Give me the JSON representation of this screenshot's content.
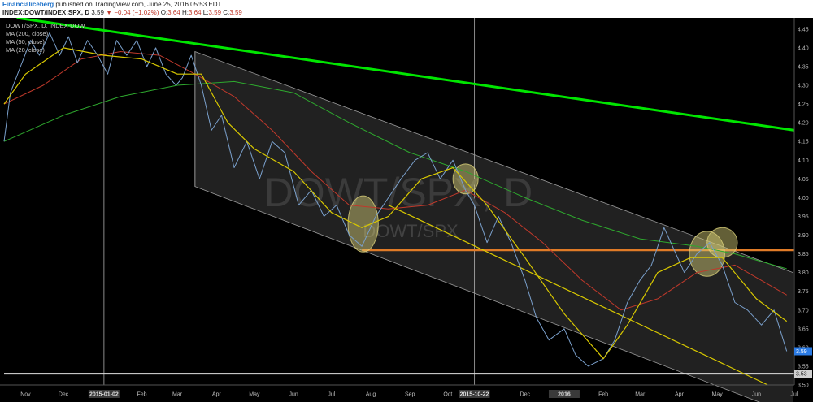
{
  "header": {
    "publisher": "Financialiceberg",
    "published_text": "published on TradingView.com, June 25, 2016 05:53 EDT",
    "symbol_line": "INDEX:DOWT/INDEX:SPX, D",
    "last": "3.59",
    "change": "▼ −0.04 (−1.02%)",
    "o_label": "O:",
    "o": "3.64",
    "h_label": "H:",
    "h": "3.64",
    "l_label": "L:",
    "l": "3.59",
    "c_label": "C:",
    "c": "3.59"
  },
  "legend": {
    "title": "DOWT/SPX, D, INDEX-DOW",
    "items": [
      "MA (200, close)",
      "MA (50, close)",
      "MA (20, close)"
    ]
  },
  "watermark": {
    "big": "DOWT/SPX, D",
    "small": "DOWT/SPX"
  },
  "price_labels": {
    "last": "3.59",
    "support": "3.53"
  },
  "colors": {
    "price": "#7aa0cc",
    "ma20": "#d8c800",
    "ma50": "#c0392b",
    "ma200": "#2ea82e",
    "trend": "#00e600",
    "horizontal": "#e07b27",
    "highlight": "#dcd27a"
  },
  "chart_data": {
    "type": "line",
    "title": "DOWT/SPX, D, INDEX-DOW",
    "ylim": [
      3.5,
      4.48
    ],
    "yticks": [
      3.5,
      3.55,
      3.6,
      3.65,
      3.7,
      3.75,
      3.8,
      3.85,
      3.9,
      3.95,
      4.0,
      4.05,
      4.1,
      4.15,
      4.2,
      4.25,
      4.3,
      4.35,
      4.4,
      4.45
    ],
    "xlim": [
      "2014-10-15",
      "2016-07-01"
    ],
    "xticks": [
      {
        "label": "Nov",
        "date": "2014-11-01"
      },
      {
        "label": "Dec",
        "date": "2014-12-01"
      },
      {
        "label": "2015-01-02",
        "date": "2015-01-02",
        "bold": true
      },
      {
        "label": "Feb",
        "date": "2015-02-01"
      },
      {
        "label": "Mar",
        "date": "2015-03-01"
      },
      {
        "label": "Apr",
        "date": "2015-04-01"
      },
      {
        "label": "May",
        "date": "2015-05-01"
      },
      {
        "label": "Jun",
        "date": "2015-06-01"
      },
      {
        "label": "Jul",
        "date": "2015-07-01"
      },
      {
        "label": "Aug",
        "date": "2015-08-01"
      },
      {
        "label": "Sep",
        "date": "2015-09-01"
      },
      {
        "label": "Oct",
        "date": "2015-10-01"
      },
      {
        "label": "2015-10-22",
        "date": "2015-10-22",
        "bold": true
      },
      {
        "label": "Dec",
        "date": "2015-12-01"
      },
      {
        "label": "2016",
        "date": "2016-01-01",
        "bold": true
      },
      {
        "label": "Feb",
        "date": "2016-02-01"
      },
      {
        "label": "Mar",
        "date": "2016-03-01"
      },
      {
        "label": "Apr",
        "date": "2016-04-01"
      },
      {
        "label": "May",
        "date": "2016-05-01"
      },
      {
        "label": "Jun",
        "date": "2016-06-01"
      },
      {
        "label": "Jul",
        "date": "2016-07-01"
      }
    ],
    "vlines": [
      "2015-01-02",
      "2015-10-22"
    ],
    "series": [
      {
        "key": "price",
        "points": [
          [
            "2014-10-15",
            4.15
          ],
          [
            "2014-10-20",
            4.28
          ],
          [
            "2014-10-28",
            4.35
          ],
          [
            "2014-11-05",
            4.42
          ],
          [
            "2014-11-12",
            4.38
          ],
          [
            "2014-11-20",
            4.44
          ],
          [
            "2014-11-28",
            4.38
          ],
          [
            "2014-12-05",
            4.43
          ],
          [
            "2014-12-12",
            4.36
          ],
          [
            "2014-12-20",
            4.42
          ],
          [
            "2014-12-28",
            4.38
          ],
          [
            "2015-01-05",
            4.33
          ],
          [
            "2015-01-12",
            4.42
          ],
          [
            "2015-01-20",
            4.38
          ],
          [
            "2015-01-28",
            4.42
          ],
          [
            "2015-02-05",
            4.35
          ],
          [
            "2015-02-12",
            4.4
          ],
          [
            "2015-02-20",
            4.33
          ],
          [
            "2015-02-28",
            4.3
          ],
          [
            "2015-03-05",
            4.32
          ],
          [
            "2015-03-12",
            4.38
          ],
          [
            "2015-03-20",
            4.3
          ],
          [
            "2015-03-28",
            4.18
          ],
          [
            "2015-04-05",
            4.22
          ],
          [
            "2015-04-15",
            4.08
          ],
          [
            "2015-04-25",
            4.15
          ],
          [
            "2015-05-05",
            4.05
          ],
          [
            "2015-05-15",
            4.15
          ],
          [
            "2015-05-25",
            4.12
          ],
          [
            "2015-06-05",
            3.98
          ],
          [
            "2015-06-15",
            4.02
          ],
          [
            "2015-06-25",
            3.95
          ],
          [
            "2015-07-05",
            3.98
          ],
          [
            "2015-07-15",
            3.9
          ],
          [
            "2015-07-25",
            3.87
          ],
          [
            "2015-08-05",
            3.95
          ],
          [
            "2015-08-15",
            4.0
          ],
          [
            "2015-08-25",
            4.05
          ],
          [
            "2015-09-05",
            4.1
          ],
          [
            "2015-09-15",
            4.12
          ],
          [
            "2015-09-25",
            4.05
          ],
          [
            "2015-10-05",
            4.1
          ],
          [
            "2015-10-15",
            4.02
          ],
          [
            "2015-10-22",
            3.98
          ],
          [
            "2015-11-01",
            3.88
          ],
          [
            "2015-11-10",
            3.95
          ],
          [
            "2015-11-20",
            3.88
          ],
          [
            "2015-12-01",
            3.78
          ],
          [
            "2015-12-10",
            3.68
          ],
          [
            "2015-12-20",
            3.62
          ],
          [
            "2016-01-01",
            3.65
          ],
          [
            "2016-01-10",
            3.58
          ],
          [
            "2016-01-20",
            3.55
          ],
          [
            "2016-02-01",
            3.57
          ],
          [
            "2016-02-10",
            3.62
          ],
          [
            "2016-02-20",
            3.72
          ],
          [
            "2016-03-01",
            3.78
          ],
          [
            "2016-03-10",
            3.82
          ],
          [
            "2016-03-20",
            3.92
          ],
          [
            "2016-03-28",
            3.86
          ],
          [
            "2016-04-05",
            3.8
          ],
          [
            "2016-04-15",
            3.85
          ],
          [
            "2016-04-25",
            3.88
          ],
          [
            "2016-05-05",
            3.82
          ],
          [
            "2016-05-15",
            3.72
          ],
          [
            "2016-05-25",
            3.7
          ],
          [
            "2016-06-05",
            3.66
          ],
          [
            "2016-06-15",
            3.7
          ],
          [
            "2016-06-25",
            3.59
          ]
        ]
      },
      {
        "key": "ma20",
        "points": [
          [
            "2014-10-15",
            4.25
          ],
          [
            "2014-11-01",
            4.33
          ],
          [
            "2014-12-01",
            4.4
          ],
          [
            "2015-01-02",
            4.38
          ],
          [
            "2015-02-01",
            4.37
          ],
          [
            "2015-03-01",
            4.33
          ],
          [
            "2015-03-20",
            4.33
          ],
          [
            "2015-04-10",
            4.2
          ],
          [
            "2015-05-01",
            4.13
          ],
          [
            "2015-06-01",
            4.07
          ],
          [
            "2015-07-01",
            3.96
          ],
          [
            "2015-07-25",
            3.92
          ],
          [
            "2015-08-15",
            3.95
          ],
          [
            "2015-09-10",
            4.05
          ],
          [
            "2015-10-05",
            4.08
          ],
          [
            "2015-11-01",
            3.98
          ],
          [
            "2015-12-01",
            3.84
          ],
          [
            "2016-01-01",
            3.69
          ],
          [
            "2016-02-01",
            3.57
          ],
          [
            "2016-02-20",
            3.66
          ],
          [
            "2016-03-15",
            3.8
          ],
          [
            "2016-04-10",
            3.84
          ],
          [
            "2016-05-05",
            3.84
          ],
          [
            "2016-06-01",
            3.73
          ],
          [
            "2016-06-25",
            3.67
          ]
        ]
      },
      {
        "key": "ma50",
        "points": [
          [
            "2014-10-15",
            4.25
          ],
          [
            "2014-11-15",
            4.3
          ],
          [
            "2014-12-15",
            4.37
          ],
          [
            "2015-01-15",
            4.39
          ],
          [
            "2015-02-15",
            4.38
          ],
          [
            "2015-03-15",
            4.33
          ],
          [
            "2015-04-15",
            4.27
          ],
          [
            "2015-05-15",
            4.18
          ],
          [
            "2015-06-15",
            4.07
          ],
          [
            "2015-07-15",
            3.98
          ],
          [
            "2015-08-15",
            3.97
          ],
          [
            "2015-09-15",
            3.98
          ],
          [
            "2015-10-15",
            4.02
          ],
          [
            "2015-11-15",
            3.96
          ],
          [
            "2015-12-15",
            3.88
          ],
          [
            "2016-01-15",
            3.78
          ],
          [
            "2016-02-15",
            3.7
          ],
          [
            "2016-03-15",
            3.73
          ],
          [
            "2016-04-15",
            3.8
          ],
          [
            "2016-05-15",
            3.82
          ],
          [
            "2016-06-25",
            3.74
          ]
        ]
      },
      {
        "key": "ma200",
        "points": [
          [
            "2014-10-15",
            4.15
          ],
          [
            "2014-12-01",
            4.22
          ],
          [
            "2015-01-15",
            4.27
          ],
          [
            "2015-03-01",
            4.3
          ],
          [
            "2015-04-15",
            4.31
          ],
          [
            "2015-06-01",
            4.28
          ],
          [
            "2015-07-15",
            4.2
          ],
          [
            "2015-09-01",
            4.12
          ],
          [
            "2015-10-15",
            4.07
          ],
          [
            "2015-12-01",
            4.0
          ],
          [
            "2016-01-15",
            3.94
          ],
          [
            "2016-03-01",
            3.89
          ],
          [
            "2016-04-15",
            3.87
          ],
          [
            "2016-05-15",
            3.85
          ],
          [
            "2016-06-25",
            3.81
          ]
        ]
      }
    ],
    "drawings": {
      "channel": {
        "upper": [
          [
            "2015-03-15",
            4.39
          ],
          [
            "2016-06-30",
            3.8
          ]
        ],
        "lower": [
          [
            "2015-03-15",
            4.03
          ],
          [
            "2016-06-30",
            3.42
          ]
        ]
      },
      "green_trend": [
        [
          "2014-10-25",
          4.48
        ],
        [
          "2016-07-01",
          4.18
        ]
      ],
      "yellow_trend": [
        [
          "2015-08-15",
          3.98
        ],
        [
          "2016-06-10",
          3.5
        ]
      ],
      "orange_line": [
        [
          "2015-07-25",
          3.86
        ],
        [
          "2016-07-01",
          3.86
        ]
      ],
      "white_line": [
        [
          "2014-10-15",
          3.53
        ],
        [
          "2016-07-01",
          3.53
        ]
      ],
      "ellipses": [
        {
          "date": "2015-07-26",
          "value": 3.93,
          "rx_days": 12,
          "ry": 0.075
        },
        {
          "date": "2015-10-15",
          "value": 4.05,
          "rx_days": 10,
          "ry": 0.04
        },
        {
          "date": "2016-04-23",
          "value": 3.85,
          "rx_days": 14,
          "ry": 0.06
        },
        {
          "date": "2016-05-05",
          "value": 3.88,
          "rx_days": 12,
          "ry": 0.04
        }
      ]
    }
  }
}
